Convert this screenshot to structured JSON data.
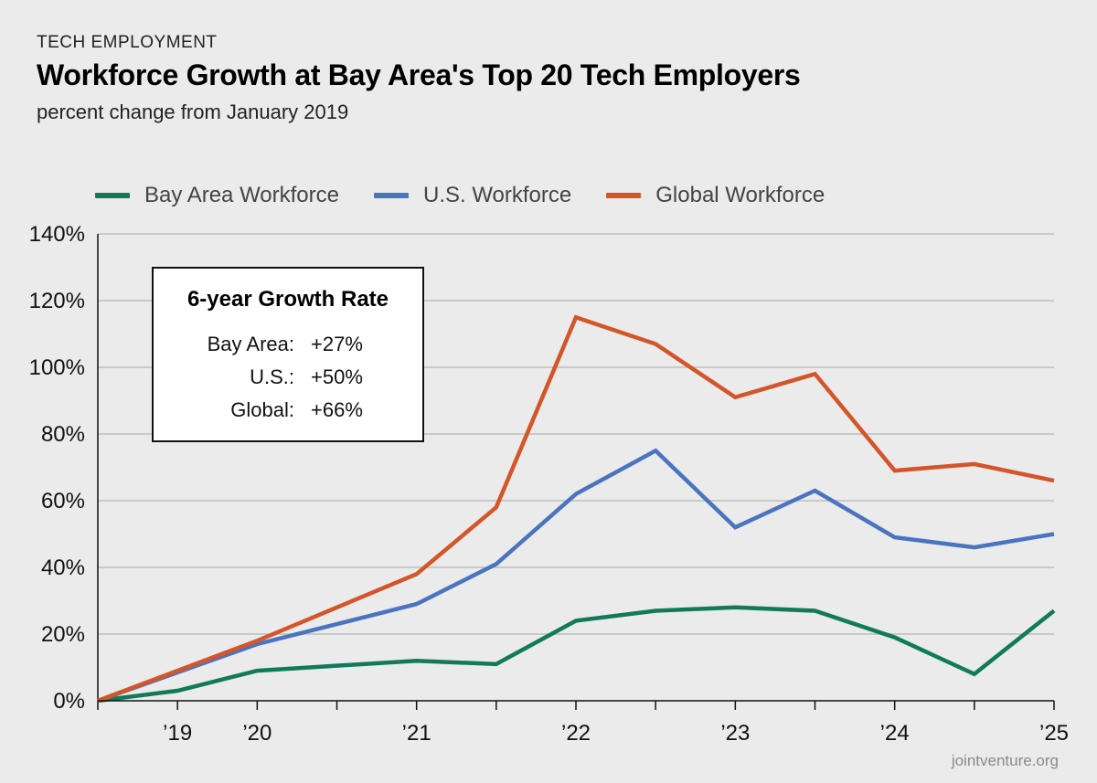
{
  "header": {
    "kicker": "TECH EMPLOYMENT",
    "title": "Workforce Growth at Bay Area's Top 20 Tech Employers",
    "subtitle": "percent change from January 2019"
  },
  "legend": [
    {
      "label": "Bay Area Workforce",
      "color": "#117a5a"
    },
    {
      "label": "U.S. Workforce",
      "color": "#4a74c0"
    },
    {
      "label": "Global Workforce",
      "color": "#d4552a"
    }
  ],
  "growth_box": {
    "title": "6-year Growth Rate",
    "rows": [
      {
        "name": "Bay Area:",
        "value": "+27%"
      },
      {
        "name": "U.S.:",
        "value": "+50%"
      },
      {
        "name": "Global:",
        "value": "+66%"
      }
    ]
  },
  "source": "jointventure.org",
  "chart_data": {
    "type": "line",
    "title": "Workforce Growth at Bay Area's Top 20 Tech Employers",
    "ylabel": "percent change from January 2019",
    "xlabel": "",
    "x": [
      2019.0,
      2019.5,
      2020.0,
      2020.5,
      2021.0,
      2021.5,
      2022.0,
      2022.5,
      2023.0,
      2023.5,
      2024.0,
      2024.5,
      2025.0
    ],
    "xlim": [
      2019.0,
      2025.0
    ],
    "ylim": [
      0,
      140
    ],
    "yticks": [
      0,
      20,
      40,
      60,
      80,
      100,
      120,
      140
    ],
    "ytick_labels": [
      "0%",
      "20%",
      "40%",
      "60%",
      "80%",
      "100%",
      "120%",
      "140%"
    ],
    "xticks": [
      2019.5,
      2020.0,
      2021.0,
      2022.0,
      2023.0,
      2024.0,
      2025.0
    ],
    "xtick_labels": [
      "’19",
      "’20",
      "’21",
      "’22",
      "’23",
      "’24",
      "’25"
    ],
    "grid": "horizontal",
    "legend_position": "top",
    "series": [
      {
        "name": "Bay Area Workforce",
        "color": "#117a5a",
        "values": [
          0,
          3,
          9,
          null,
          12,
          11,
          24,
          27,
          28,
          27,
          19,
          8,
          27
        ]
      },
      {
        "name": "U.S. Workforce",
        "color": "#4a74c0",
        "values": [
          0,
          null,
          17,
          null,
          29,
          41,
          62,
          75,
          52,
          63,
          49,
          46,
          50
        ]
      },
      {
        "name": "Global Workforce",
        "color": "#d4552a",
        "values": [
          0,
          null,
          18,
          null,
          38,
          58,
          115,
          107,
          91,
          98,
          69,
          71,
          66
        ]
      }
    ]
  }
}
